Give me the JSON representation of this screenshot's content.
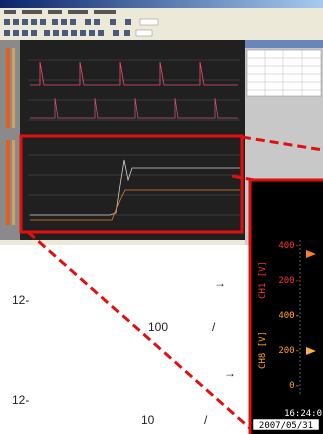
{
  "annotations": {
    "left_1": "12-",
    "arrow_1": "→",
    "value_1": "100",
    "slash_1": "/",
    "arrow_2": "→",
    "left_2": "12-",
    "value_2": "10",
    "slash_2": "/"
  },
  "zoom_panel": {
    "channels": [
      {
        "name": "CH1 [V]",
        "ticks": [
          "400-",
          "200-",
          "0-"
        ]
      },
      {
        "name": "CH8 [V]",
        "ticks": [
          "400-",
          "200-",
          "0-"
        ]
      }
    ],
    "time": "16:24:0",
    "date": "2007/05/31"
  }
}
